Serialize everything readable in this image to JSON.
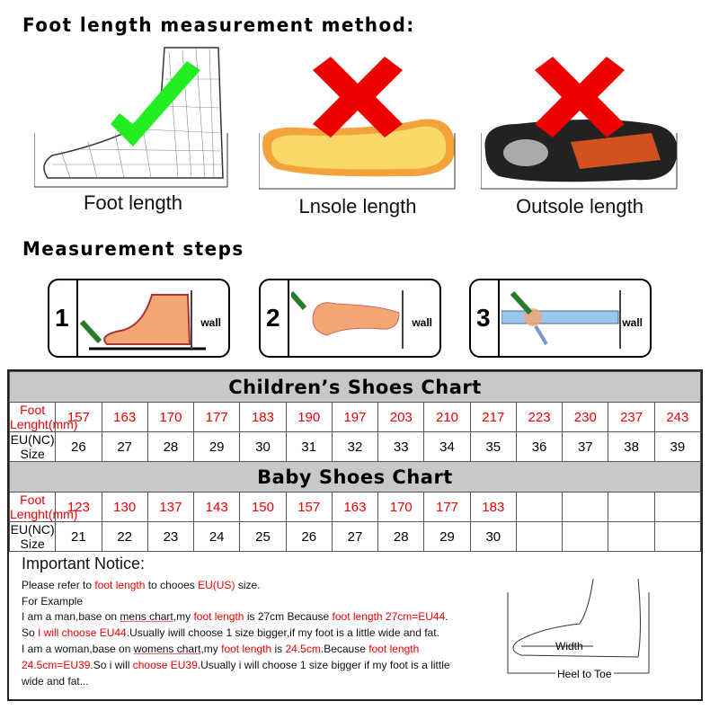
{
  "title": "Foot length measurement method:",
  "methods": [
    {
      "label": "Foot length",
      "correct": true
    },
    {
      "label": "Lnsole length",
      "correct": false
    },
    {
      "label": "Outsole length",
      "correct": false
    }
  ],
  "steps_title": "Measurement steps",
  "steps": [
    {
      "num": "1",
      "wall": "wall"
    },
    {
      "num": "2",
      "wall": "wall"
    },
    {
      "num": "3",
      "wall": "wall"
    }
  ],
  "children": {
    "title": "Children’s Shoes Chart",
    "row1_label": "Foot Lenght(mm)",
    "row2_label": "EU(NC) Size",
    "lengths": [
      "157",
      "163",
      "170",
      "177",
      "183",
      "190",
      "197",
      "203",
      "210",
      "217",
      "223",
      "230",
      "237",
      "243"
    ],
    "sizes": [
      "26",
      "27",
      "28",
      "29",
      "30",
      "31",
      "32",
      "33",
      "34",
      "35",
      "36",
      "37",
      "38",
      "39"
    ]
  },
  "baby": {
    "title": "Baby Shoes Chart",
    "row1_label": "Foot Lenght(mm)",
    "row2_label": "EU(NC) Size",
    "lengths": [
      "123",
      "130",
      "137",
      "143",
      "150",
      "157",
      "163",
      "170",
      "177",
      "183",
      "",
      "",
      "",
      ""
    ],
    "sizes": [
      "21",
      "22",
      "23",
      "24",
      "25",
      "26",
      "27",
      "28",
      "29",
      "30",
      "",
      "",
      "",
      ""
    ]
  },
  "notice": {
    "title": "Important Notice:",
    "l1": [
      "Please refer to ",
      "foot length",
      " to chooes ",
      "EU(US)",
      " size."
    ],
    "l2": "For Example",
    "l3": [
      "I am a man,base on ",
      "mens chart",
      ",my ",
      "foot length",
      " is 27cm Because ",
      "foot length 27cm=EU44",
      "."
    ],
    "l4": [
      "So ",
      "I will choose EU44",
      ".Usually iwill choose 1 size bigger,if my foot is a little wide and fat."
    ],
    "l5": [
      "I am a woman,base on ",
      "womens chart",
      ",my ",
      "foot length",
      " is ",
      "24.5cm",
      ".Because ",
      "foot length"
    ],
    "l6": [
      "24.5cm=EU39",
      ".So i will ",
      "choose EU39",
      ".Usually i will choose 1 size bigger if my foot is a little"
    ],
    "l7": "wide and fat...",
    "width_label": "Width",
    "heel_label": "Heel to Toe"
  },
  "colors": {
    "accent": "#ee0000",
    "check": "#22ee22",
    "header": "#c8c8c8"
  }
}
